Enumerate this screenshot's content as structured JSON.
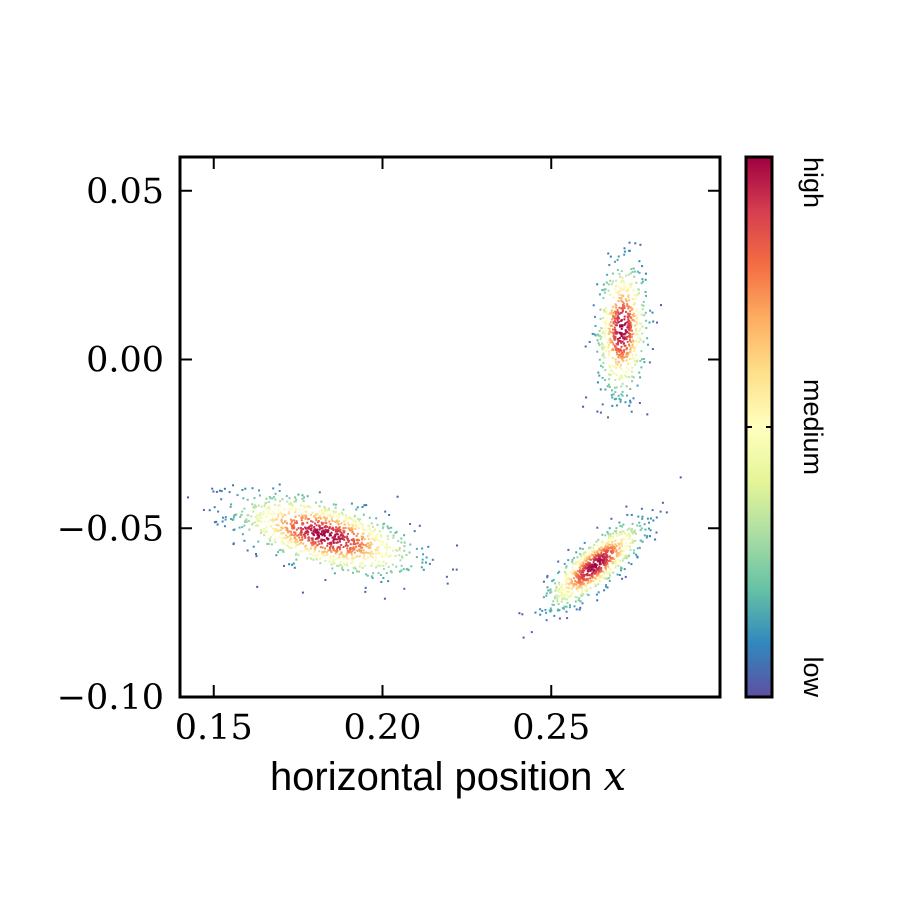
{
  "chart_data": {
    "type": "scatter",
    "title": "",
    "xlabel": "horizontal position",
    "xlabel_var": "x",
    "ylabel": "",
    "xlim": [
      0.14,
      0.3
    ],
    "ylim": [
      -0.1,
      0.06
    ],
    "xticks": [
      0.15,
      0.2,
      0.25
    ],
    "xtick_labels": [
      "0.15",
      "0.20",
      "0.25"
    ],
    "yticks": [
      0.05,
      0.0,
      -0.05,
      -0.1
    ],
    "ytick_labels": [
      "0.05",
      "0.00",
      "−0.05",
      "−0.10"
    ],
    "grid": false,
    "colormap": "Spectral_r",
    "colorbar": {
      "labels": [
        "low",
        "medium",
        "high"
      ],
      "colors": [
        "#5e4fa2",
        "#3288bd",
        "#66c2a5",
        "#abdda4",
        "#e6f598",
        "#ffffbf",
        "#fee08b",
        "#fdae61",
        "#f46d43",
        "#d53e4f",
        "#9e0142"
      ]
    },
    "series": [
      {
        "center": [
          0.183,
          -0.052
        ],
        "spread": [
          0.013,
          0.0058
        ],
        "corr": -0.55,
        "count": 1100
      },
      {
        "center": [
          0.271,
          0.009
        ],
        "spread": [
          0.0036,
          0.0095
        ],
        "corr": 0.1,
        "count": 650
      },
      {
        "center": [
          0.263,
          -0.061
        ],
        "spread": [
          0.007,
          0.0062
        ],
        "corr": 0.8,
        "count": 850
      }
    ]
  }
}
